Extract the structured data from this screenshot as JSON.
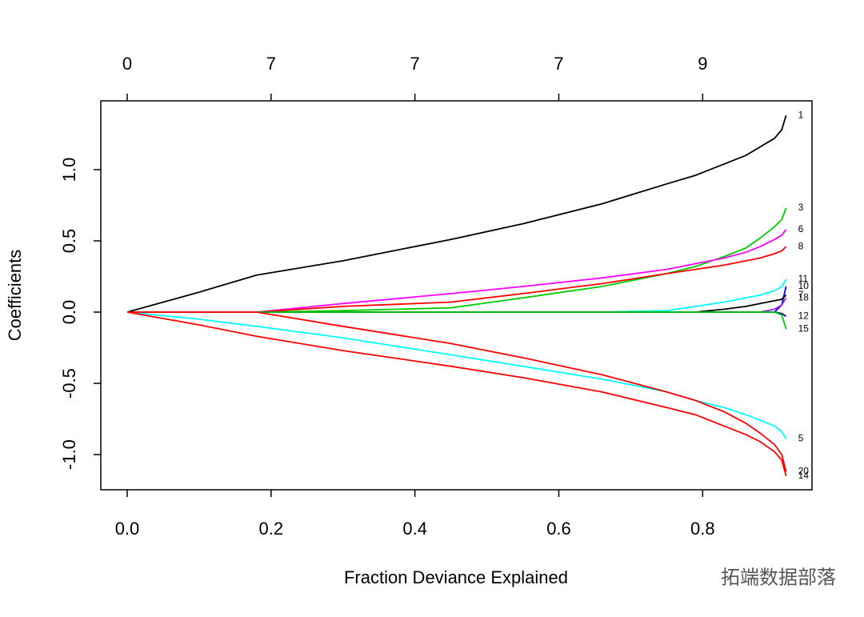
{
  "chart_data": {
    "type": "line",
    "xlabel": "Fraction Deviance Explained",
    "ylabel": "Coefficients",
    "watermark": "拓端数据部落",
    "xlim": [
      -0.0367,
      0.952
    ],
    "ylim": [
      -1.247,
      1.483
    ],
    "xticks": [
      {
        "value": 0,
        "label": "0.0"
      },
      {
        "value": 0.2,
        "label": "0.2"
      },
      {
        "value": 0.4,
        "label": "0.4"
      },
      {
        "value": 0.6,
        "label": "0.6"
      },
      {
        "value": 0.8,
        "label": "0.8"
      }
    ],
    "yticks": [
      {
        "value": -1,
        "label": "-1.0"
      },
      {
        "value": -0.5,
        "label": "-0.5"
      },
      {
        "value": 0,
        "label": "0.0"
      },
      {
        "value": 0.5,
        "label": "0.5"
      },
      {
        "value": 1,
        "label": "1.0"
      }
    ],
    "top_ticks": [
      {
        "value": 0,
        "label": "0"
      },
      {
        "value": 0.2,
        "label": "7"
      },
      {
        "value": 0.4,
        "label": "7"
      },
      {
        "value": 0.6,
        "label": "7"
      },
      {
        "value": 0.8,
        "label": "9"
      }
    ],
    "x": [
      0,
      0.1,
      0.18,
      0.3,
      0.45,
      0.55,
      0.66,
      0.75,
      0.79,
      0.83,
      0.86,
      0.88,
      0.9,
      0.91,
      0.916
    ],
    "series": [
      {
        "name": "1",
        "color": "#000000",
        "values": [
          0,
          0.14,
          0.26,
          0.36,
          0.51,
          0.62,
          0.76,
          0.9,
          0.96,
          1.04,
          1.1,
          1.16,
          1.22,
          1.28,
          1.38
        ]
      },
      {
        "name": "3",
        "color": "#00cd00",
        "values": [
          0,
          0,
          0,
          0.01,
          0.03,
          0.1,
          0.18,
          0.27,
          0.32,
          0.39,
          0.45,
          0.52,
          0.6,
          0.65,
          0.73
        ]
      },
      {
        "name": "6",
        "color": "#ff00ff",
        "values": [
          0,
          0,
          0,
          0.06,
          0.13,
          0.18,
          0.24,
          0.3,
          0.34,
          0.38,
          0.42,
          0.46,
          0.51,
          0.54,
          0.58
        ]
      },
      {
        "name": "8",
        "color": "#ff0000",
        "values": [
          0,
          0,
          0,
          0.04,
          0.07,
          0.13,
          0.2,
          0.27,
          0.3,
          0.33,
          0.36,
          0.38,
          0.41,
          0.43,
          0.46
        ]
      },
      {
        "name": "11",
        "color": "#00ffff",
        "values": [
          0,
          0,
          0,
          0,
          0,
          0,
          0,
          0.01,
          0.04,
          0.07,
          0.1,
          0.12,
          0.15,
          0.18,
          0.23
        ]
      },
      {
        "name": "10",
        "color": "#0000ff",
        "values": [
          0,
          0,
          0,
          0,
          0,
          0,
          0,
          0,
          0,
          0,
          0,
          0,
          0,
          0.05,
          0.18
        ]
      },
      {
        "name": "7",
        "color": "#000000",
        "values": [
          0,
          0,
          0,
          0,
          0,
          0,
          0,
          0,
          0,
          0.02,
          0.04,
          0.06,
          0.08,
          0.09,
          0.12
        ]
      },
      {
        "name": "18",
        "color": "#a020f0",
        "values": [
          0,
          0,
          0,
          0,
          0,
          0,
          0,
          0,
          0,
          0,
          0,
          0,
          0.02,
          0.05,
          0.1
        ]
      },
      {
        "name": "12",
        "color": "#00008b",
        "values": [
          0,
          0,
          0,
          0,
          0,
          0,
          0,
          0,
          0,
          0,
          0,
          0,
          0,
          -0.01,
          -0.03
        ]
      },
      {
        "name": "15",
        "color": "#00cd00",
        "values": [
          0,
          0,
          0,
          0,
          0,
          0,
          0,
          0,
          0,
          0,
          0,
          0,
          0,
          -0.02,
          -0.12
        ]
      },
      {
        "name": "5",
        "color": "#00ffff",
        "values": [
          0,
          -0.05,
          -0.1,
          -0.18,
          -0.3,
          -0.38,
          -0.47,
          -0.56,
          -0.62,
          -0.67,
          -0.72,
          -0.76,
          -0.8,
          -0.84,
          -0.89
        ]
      },
      {
        "name": "20",
        "color": "#ff0000",
        "values": [
          0,
          0,
          0,
          -0.1,
          -0.22,
          -0.32,
          -0.44,
          -0.56,
          -0.62,
          -0.7,
          -0.78,
          -0.85,
          -0.93,
          -1.0,
          -1.12
        ]
      },
      {
        "name": "14",
        "color": "#ff0000",
        "values": [
          0,
          -0.09,
          -0.17,
          -0.27,
          -0.38,
          -0.46,
          -0.56,
          -0.67,
          -0.72,
          -0.8,
          -0.86,
          -0.91,
          -0.98,
          -1.04,
          -1.15
        ]
      }
    ]
  }
}
